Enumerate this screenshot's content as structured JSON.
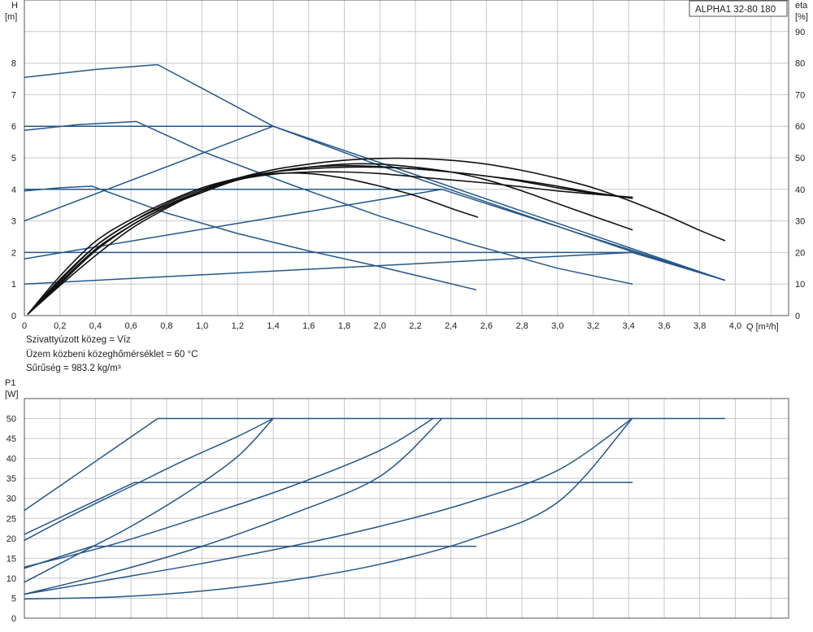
{
  "colors": {
    "curve_blue": "#24578a",
    "curve_black": "#111111",
    "grid": "#c9c9c9",
    "frame": "#555555"
  },
  "chart_data": [
    {
      "type": "line",
      "title": "ALPHA1 32-80 180",
      "ylabel": "H",
      "yunit": "[m]",
      "ylabel2": "eta",
      "yunit2": "[%]",
      "xlabel": "Q [m³/h]",
      "xlim": [
        0,
        4.3
      ],
      "ylim": [
        0,
        10
      ],
      "y2lim": [
        0,
        100
      ],
      "grid": true,
      "xticks": [
        "0",
        "0,2",
        "0,4",
        "0,6",
        "0,8",
        "1,0",
        "1,2",
        "1,4",
        "1,6",
        "1,8",
        "2,0",
        "2,2",
        "2,4",
        "2,6",
        "2,8",
        "3,0",
        "3,2",
        "3,4",
        "3,6",
        "3,8",
        "4,0"
      ],
      "yticks": [
        "0",
        "1",
        "2",
        "3",
        "4",
        "5",
        "6",
        "7",
        "8"
      ],
      "y2ticks": [
        "0",
        "10",
        "20",
        "30",
        "40",
        "50",
        "60",
        "70",
        "80",
        "90"
      ],
      "series": [
        {
          "color": "#24578a",
          "x": [
            0,
            0.4,
            0.75,
            1.4,
            2.0,
            2.6,
            3.42,
            3.94
          ],
          "y": [
            7.55,
            7.8,
            7.95,
            6.0,
            4.75,
            3.6,
            2.02,
            1.12
          ]
        },
        {
          "color": "#24578a",
          "x": [
            0,
            0.3,
            0.63,
            1.0,
            1.5,
            2.0,
            2.5,
            3.0,
            3.42
          ],
          "y": [
            5.87,
            6.05,
            6.15,
            5.2,
            4.15,
            3.15,
            2.28,
            1.5,
            1.0
          ]
        },
        {
          "color": "#24578a",
          "x": [
            0,
            0.2,
            0.38,
            0.8,
            1.2,
            1.6,
            2.0,
            2.54
          ],
          "y": [
            3.95,
            4.05,
            4.1,
            3.25,
            2.6,
            2.05,
            1.55,
            0.82
          ]
        },
        {
          "color": "#24578a",
          "x": [
            0,
            1.4,
            3.94
          ],
          "y": [
            6.0,
            6.0,
            1.12
          ]
        },
        {
          "color": "#24578a",
          "x": [
            0,
            2.35,
            3.94
          ],
          "y": [
            4.0,
            4.0,
            1.12
          ]
        },
        {
          "color": "#24578a",
          "x": [
            0,
            3.42,
            3.94
          ],
          "y": [
            2.0,
            2.0,
            1.12
          ]
        },
        {
          "color": "#24578a",
          "x": [
            0,
            1.4
          ],
          "y": [
            3.0,
            6.0
          ]
        },
        {
          "color": "#24578a",
          "x": [
            0,
            2.35
          ],
          "y": [
            1.8,
            4.0
          ]
        },
        {
          "color": "#24578a",
          "x": [
            0,
            3.42
          ],
          "y": [
            1.0,
            2.0
          ]
        },
        {
          "color": "#111111",
          "x": [
            0.02,
            0.2,
            0.4,
            0.6,
            0.8,
            1.0,
            1.2,
            1.4,
            1.6,
            1.8,
            2.0,
            2.2,
            2.4,
            2.55
          ],
          "y": [
            0.05,
            1.1,
            2.2,
            2.95,
            3.55,
            4.0,
            4.35,
            4.5,
            4.5,
            4.35,
            4.1,
            3.8,
            3.4,
            3.12
          ]
        },
        {
          "color": "#111111",
          "x": [
            0.02,
            0.2,
            0.4,
            0.6,
            0.8,
            1.0,
            1.2,
            1.4,
            1.6,
            1.8,
            2.0,
            2.2,
            2.4,
            2.6,
            2.8,
            3.0,
            3.2,
            3.42
          ],
          "y": [
            0.05,
            1.0,
            2.05,
            2.85,
            3.45,
            3.95,
            4.3,
            4.55,
            4.7,
            4.8,
            4.8,
            4.7,
            4.55,
            4.3,
            3.95,
            3.55,
            3.15,
            2.72
          ]
        },
        {
          "color": "#111111",
          "x": [
            0.02,
            0.2,
            0.4,
            0.6,
            0.8,
            1.0,
            1.2,
            1.4,
            1.6,
            1.8,
            2.0,
            2.2,
            2.4,
            2.6,
            2.8,
            3.0,
            3.2,
            3.4,
            3.6,
            3.8,
            3.94
          ],
          "y": [
            0.05,
            0.95,
            1.9,
            2.75,
            3.4,
            3.95,
            4.35,
            4.62,
            4.8,
            4.92,
            4.98,
            4.98,
            4.92,
            4.8,
            4.6,
            4.35,
            4.05,
            3.65,
            3.2,
            2.7,
            2.38
          ]
        },
        {
          "color": "#111111",
          "x": [
            0.02,
            0.2,
            0.4,
            0.6,
            0.8,
            1.0,
            1.2,
            1.4,
            1.6,
            1.8,
            2.0,
            2.2,
            2.4,
            2.6,
            2.8,
            3.0,
            3.2,
            3.42
          ],
          "y": [
            0.05,
            1.05,
            2.1,
            2.85,
            3.45,
            3.9,
            4.3,
            4.55,
            4.7,
            4.75,
            4.72,
            4.65,
            4.55,
            4.42,
            4.28,
            4.1,
            3.9,
            3.72
          ]
        },
        {
          "color": "#111111",
          "x": [
            0.02,
            0.2,
            0.4,
            0.6,
            0.8,
            1.0,
            1.2,
            1.4,
            1.6,
            1.8,
            2.0,
            2.2,
            2.4,
            2.6,
            2.8,
            3.0,
            3.2,
            3.42
          ],
          "y": [
            0.05,
            1.15,
            2.2,
            2.95,
            3.5,
            3.95,
            4.3,
            4.48,
            4.55,
            4.55,
            4.5,
            4.4,
            4.3,
            4.2,
            4.08,
            3.95,
            3.85,
            3.75
          ]
        },
        {
          "color": "#111111",
          "x": [
            0.02,
            0.2,
            0.4,
            0.6,
            0.8,
            1.0,
            1.2,
            1.4,
            1.6,
            1.8,
            2.0,
            2.2,
            2.4,
            2.6,
            2.8,
            3.0,
            3.2,
            3.42
          ],
          "y": [
            0.05,
            1.25,
            2.35,
            3.05,
            3.6,
            4.05,
            4.35,
            4.55,
            4.65,
            4.7,
            4.7,
            4.65,
            4.55,
            4.42,
            4.25,
            4.05,
            3.88,
            3.72
          ]
        }
      ]
    },
    {
      "type": "line",
      "ylabel": "P1",
      "yunit": "[W]",
      "xlim": [
        0,
        4.3
      ],
      "ylim": [
        0,
        55
      ],
      "grid": true,
      "yticks": [
        "0",
        "5",
        "10",
        "15",
        "20",
        "25",
        "30",
        "35",
        "40",
        "45",
        "50"
      ],
      "series": [
        {
          "color": "#24578a",
          "x": [
            0,
            0.75,
            3.94
          ],
          "y": [
            27,
            50,
            50
          ]
        },
        {
          "color": "#24578a",
          "x": [
            0,
            0.62,
            3.42
          ],
          "y": [
            21,
            34,
            34
          ]
        },
        {
          "color": "#24578a",
          "x": [
            0,
            0.38,
            2.54
          ],
          "y": [
            12.5,
            18,
            18
          ]
        },
        {
          "color": "#24578a",
          "x": [
            0,
            0.3,
            0.6,
            0.9,
            1.2,
            1.4
          ],
          "y": [
            19.5,
            26.5,
            33.0,
            39.5,
            45.5,
            50
          ]
        },
        {
          "color": "#24578a",
          "x": [
            0,
            0.3,
            0.6,
            0.9,
            1.2,
            1.4
          ],
          "y": [
            9.0,
            16.0,
            23.0,
            31.0,
            40.5,
            50
          ]
        },
        {
          "color": "#24578a",
          "x": [
            0,
            0.5,
            1.0,
            1.5,
            2.0,
            2.3
          ],
          "y": [
            12.8,
            18.5,
            25.5,
            33.0,
            42.0,
            50
          ]
        },
        {
          "color": "#24578a",
          "x": [
            0,
            0.5,
            1.0,
            1.5,
            2.0,
            2.35
          ],
          "y": [
            6.0,
            11.5,
            18.0,
            26.0,
            35.5,
            50
          ]
        },
        {
          "color": "#24578a",
          "x": [
            0,
            0.5,
            1.0,
            1.5,
            2.0,
            2.5,
            3.0,
            3.42
          ],
          "y": [
            6.0,
            9.8,
            13.7,
            18.0,
            23.0,
            29.0,
            37.0,
            50
          ]
        },
        {
          "color": "#24578a",
          "x": [
            0,
            0.5,
            1.0,
            1.5,
            2.0,
            2.5,
            3.0,
            3.42
          ],
          "y": [
            4.8,
            5.3,
            6.8,
            9.5,
            13.5,
            19.5,
            29.0,
            50
          ]
        }
      ]
    }
  ],
  "notes": [
    "Szivattyúzott közeg = Víz",
    "Üzem közbeni közeghőmérséklet = 60 °C",
    "Sűrűség = 983.2 kg/m³"
  ]
}
